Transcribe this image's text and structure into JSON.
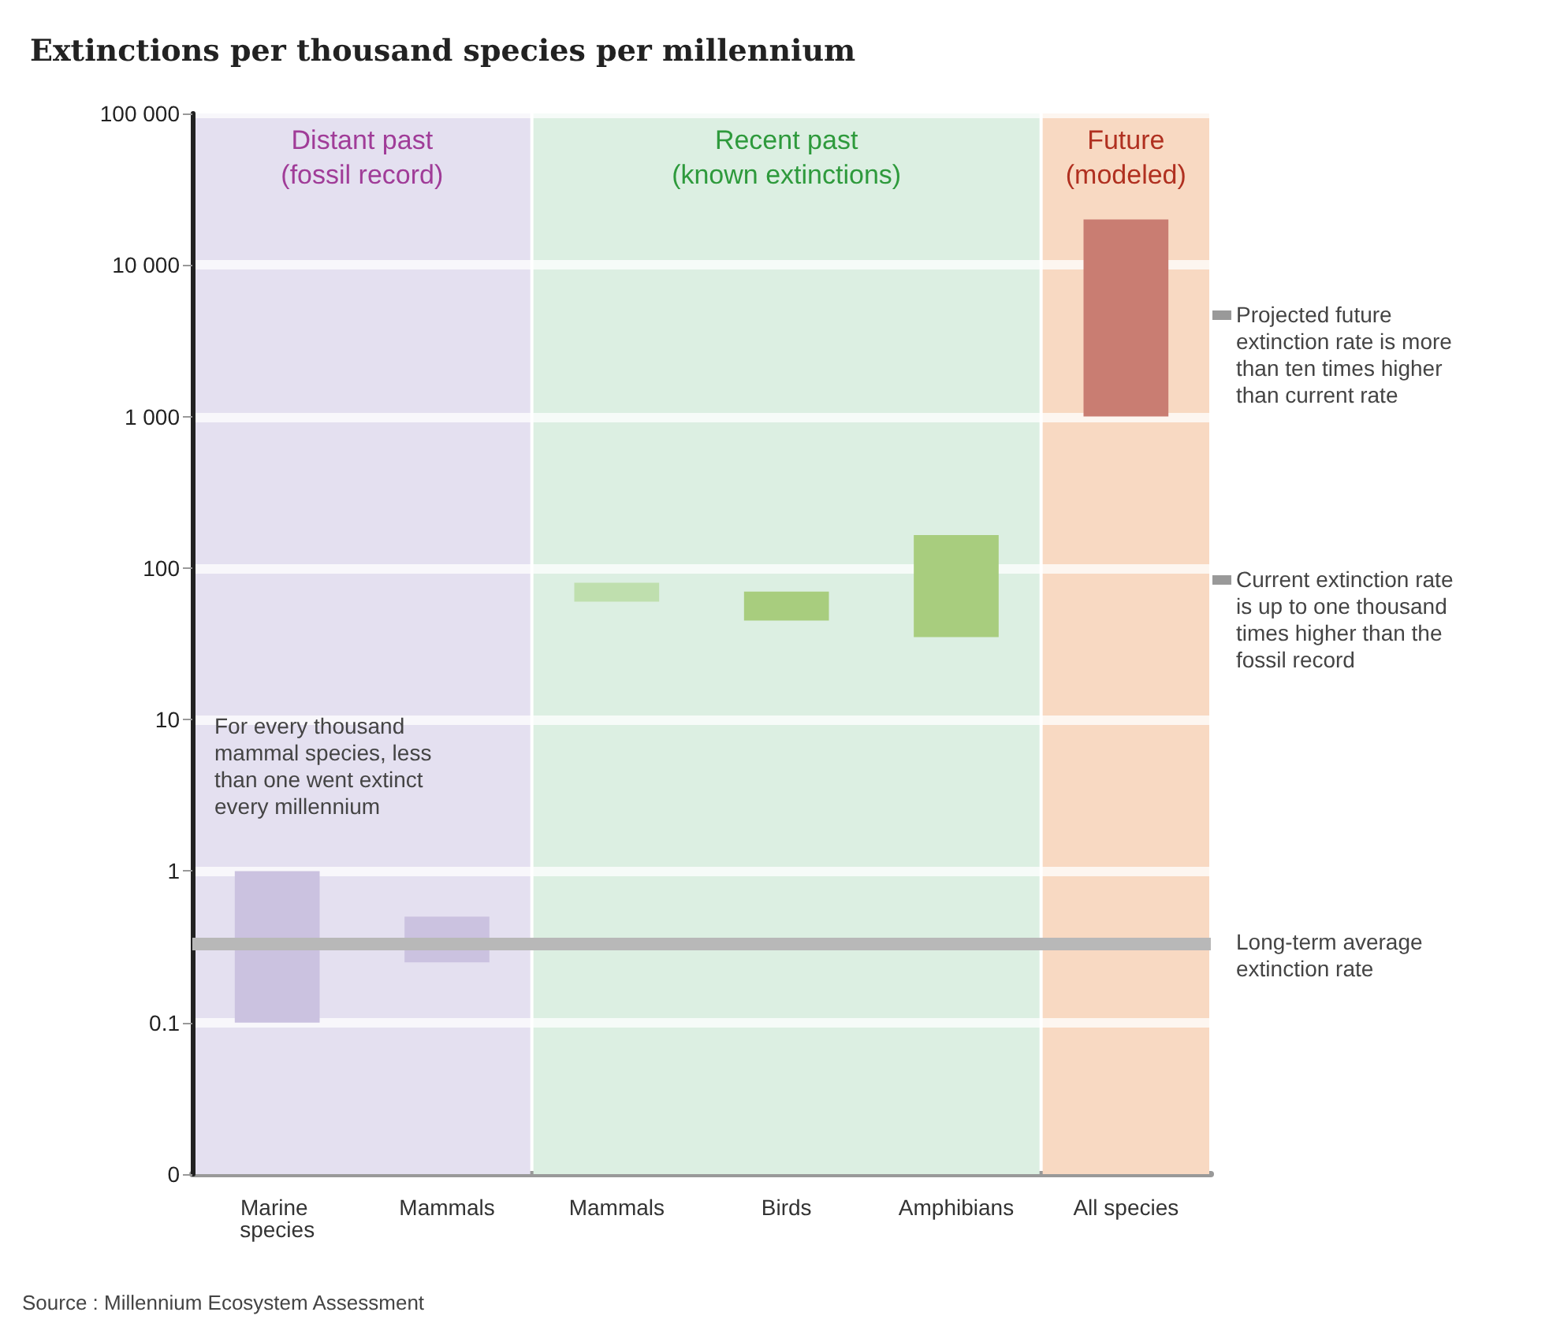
{
  "chart_data": {
    "type": "bar",
    "title": "Extinctions per thousand species per millennium",
    "categories": [
      "Marine species",
      "Mammals",
      "Mammals",
      "Birds",
      "Amphibians",
      "All species"
    ],
    "base": [
      0.1,
      0.25,
      60,
      45,
      35,
      1000
    ],
    "values": [
      0.9,
      0.25,
      20,
      25,
      130,
      19000
    ],
    "colors": [
      "#cbc2e0",
      "#cbc2e0",
      "#bfdfae",
      "#a8cd7e",
      "#a8cd7e",
      "#c97d72"
    ],
    "log": "y",
    "ylim": [
      0.01,
      100000
    ],
    "yticks": [
      {
        "value": 0.01,
        "label": "0"
      },
      0.1,
      1,
      10,
      100,
      {
        "value": 1000,
        "label": "1 000"
      },
      {
        "value": 10000,
        "label": "10 000"
      },
      {
        "value": 100000,
        "label": "100 000"
      }
    ],
    "grid": "y",
    "bands": [
      {
        "axis": "x",
        "from": "Marine species",
        "to": "Mammals",
        "label": "Distant past (fossil record)",
        "color": "#e4e0f0"
      },
      {
        "axis": "x",
        "from": "Mammals",
        "to": "Amphibians",
        "label": "Recent past (known extinctions)",
        "color": "#dcefe2"
      },
      {
        "axis": "x",
        "from": "All species",
        "to": "All species",
        "label": "Future (modeled)",
        "color": "#f8d9c2"
      }
    ],
    "ref_lines": [
      {
        "axis": "y",
        "value": 0.33,
        "label": "Long-term average extinction rate",
        "color": "#b8b8b8"
      }
    ],
    "annotations": [
      "Projected future extinction rate is more than ten times higher than current rate",
      "Current extinction rate is up to one thousand times higher than the fossil record",
      "For every thousand mammal species, less than one went extinct every millennium",
      "Source : Millennium Ecosystem Assessment"
    ]
  }
}
